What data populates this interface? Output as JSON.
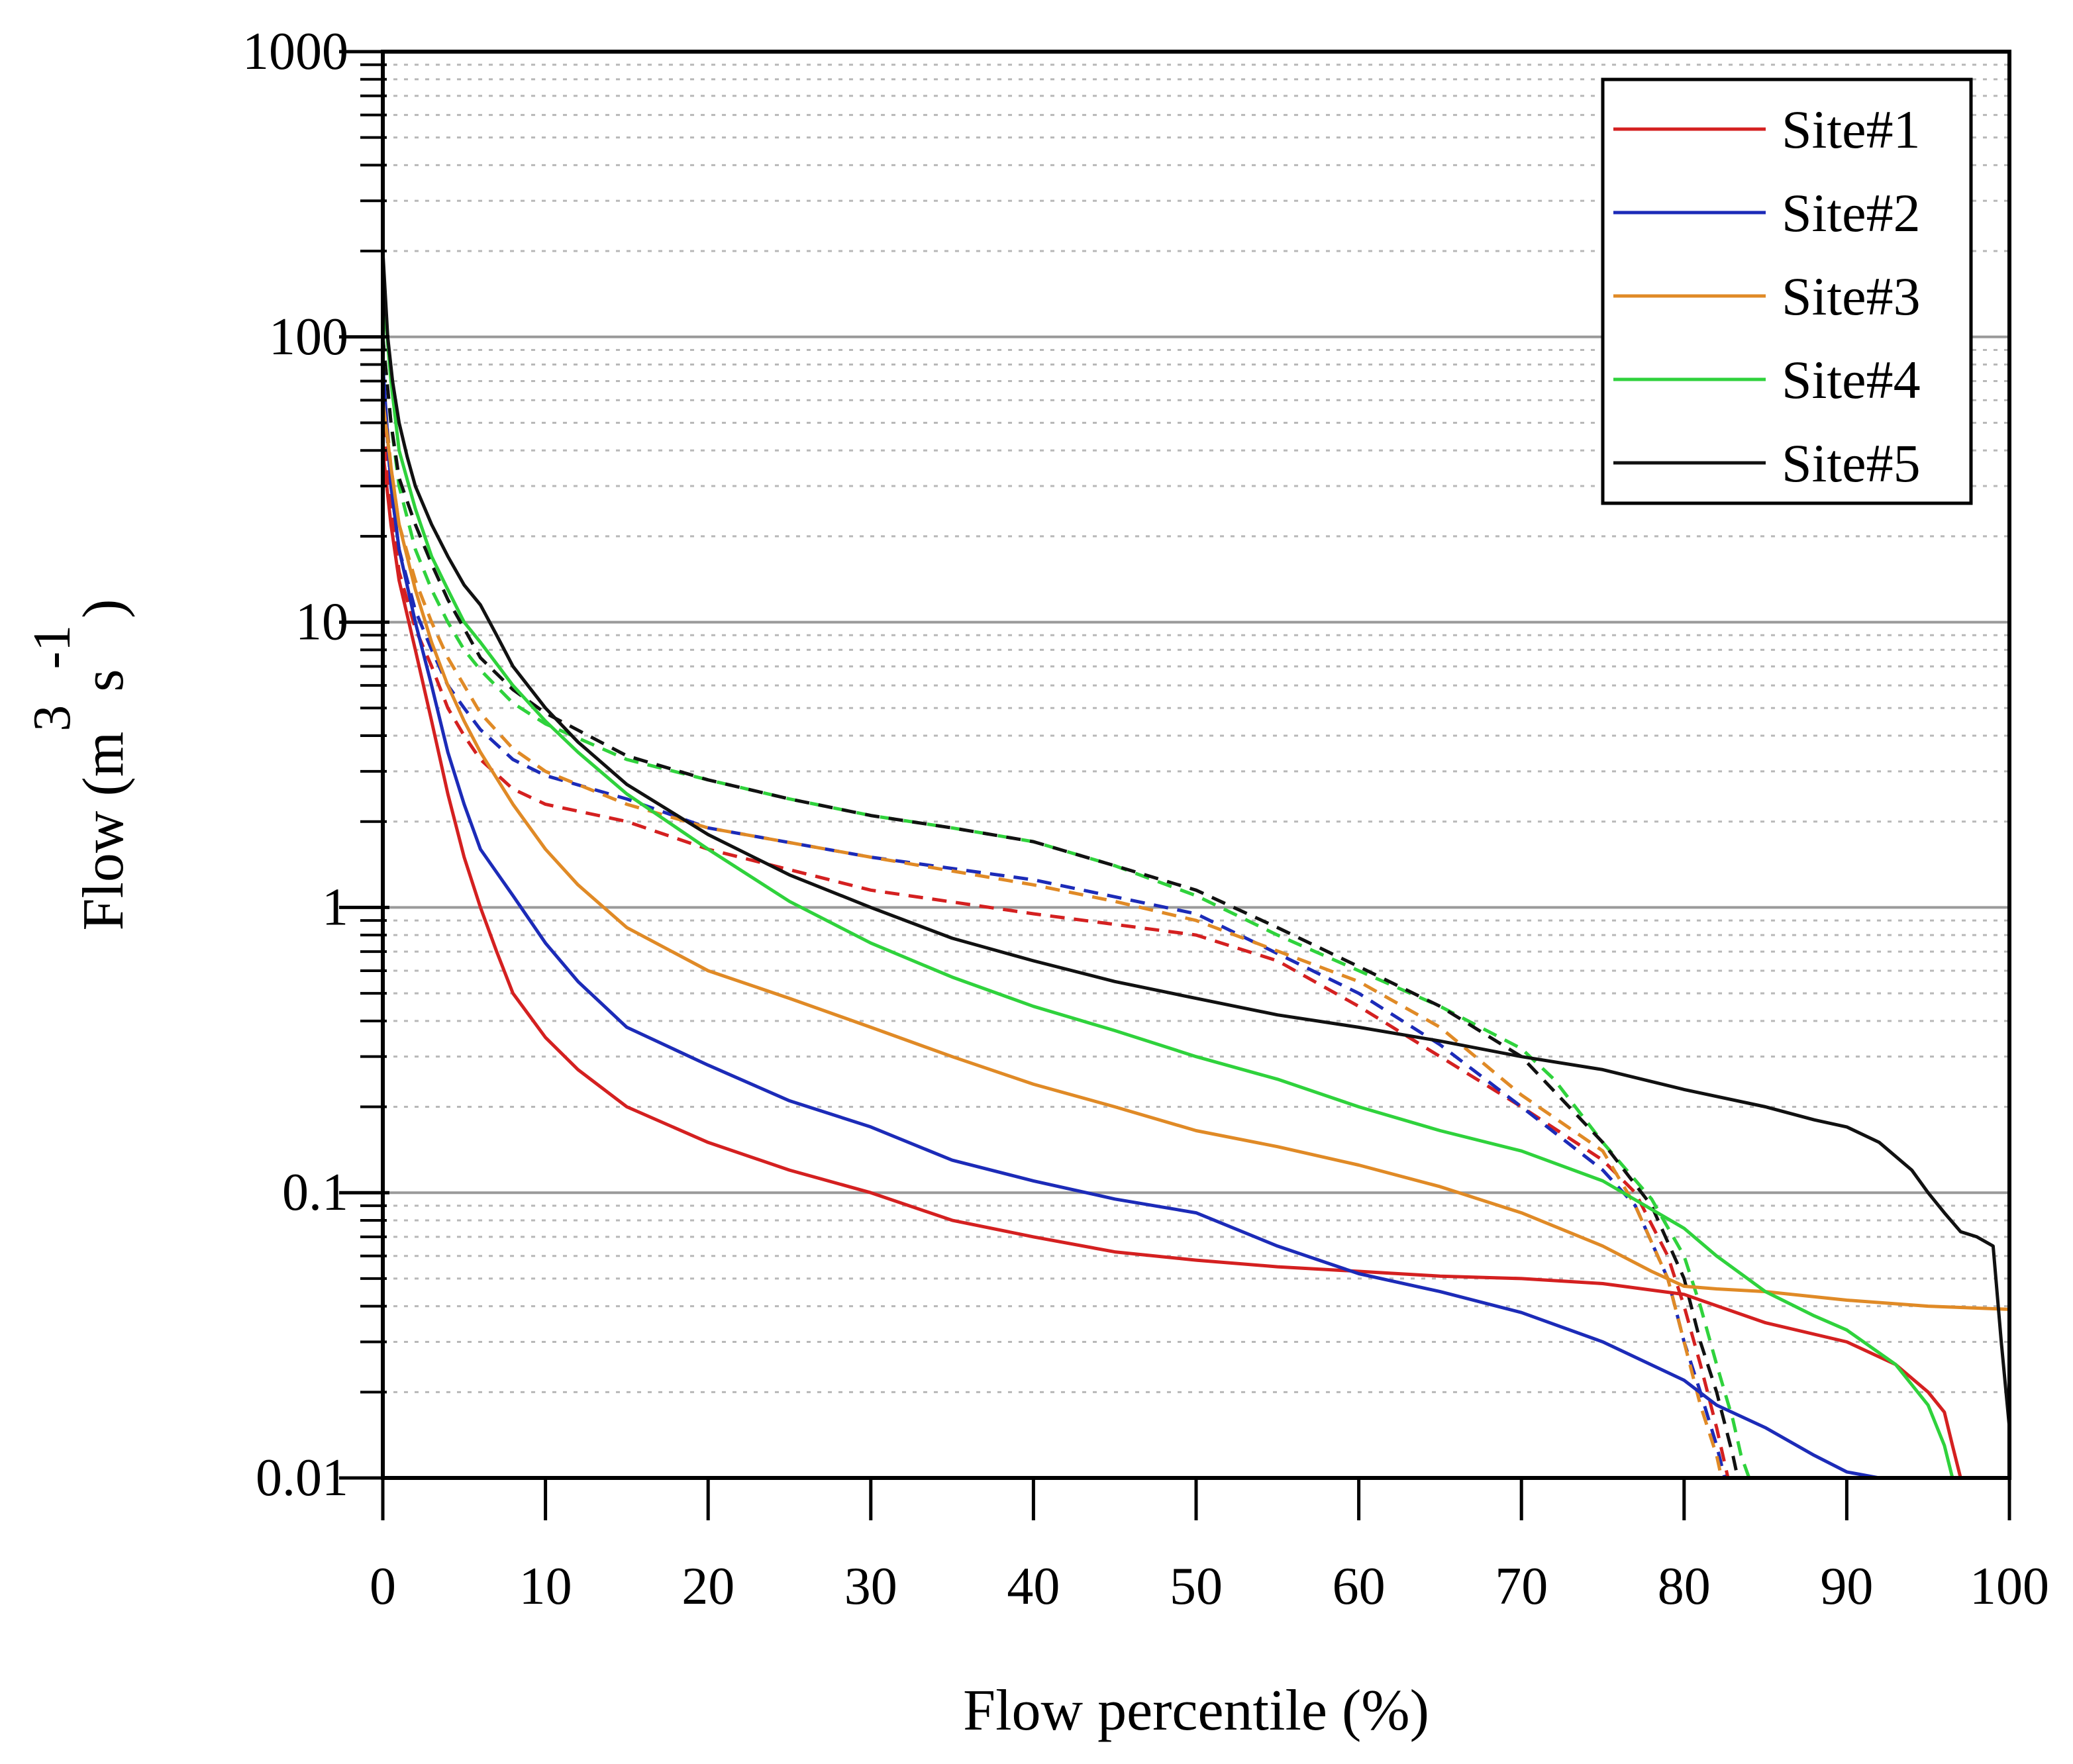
{
  "chart_data": {
    "type": "line",
    "title": "",
    "xlabel": "Flow percentile (%)",
    "ylabel": {
      "main": "Flow (m",
      "s": "s",
      "close": ")",
      "sup_m": "3",
      "sup_s": "-1"
    },
    "xlim": [
      0,
      100
    ],
    "ylim": [
      0.01,
      1000
    ],
    "yscale": "log",
    "x_ticks": [
      "0",
      "10",
      "20",
      "30",
      "40",
      "50",
      "60",
      "70",
      "80",
      "90",
      "100"
    ],
    "y_ticks": [
      "0.01",
      "0.1",
      "1",
      "10",
      "100",
      "1000"
    ],
    "grid": "major solid gray, minor dotted",
    "legend_position": "top-right",
    "series": [
      {
        "name": "Site#1",
        "color": "#d42020",
        "style": "solid",
        "x": [
          0,
          0.5,
          1,
          2,
          3,
          4,
          5,
          6,
          7,
          8,
          10,
          12,
          15,
          20,
          25,
          30,
          35,
          40,
          45,
          50,
          55,
          60,
          65,
          70,
          75,
          80,
          85,
          90,
          93,
          95,
          96,
          96.5,
          97
        ],
        "y": [
          40,
          22,
          14,
          8,
          4.5,
          2.5,
          1.5,
          1.0,
          0.7,
          0.5,
          0.35,
          0.27,
          0.2,
          0.15,
          0.12,
          0.1,
          0.08,
          0.07,
          0.062,
          0.058,
          0.055,
          0.053,
          0.051,
          0.05,
          0.048,
          0.044,
          0.035,
          0.03,
          0.025,
          0.02,
          0.017,
          0.013,
          0.01
        ]
      },
      {
        "name": "Site#1 (dashed)",
        "color": "#d42020",
        "style": "dashed",
        "x": [
          0,
          0.5,
          1,
          2,
          3,
          4,
          5,
          6,
          8,
          10,
          15,
          20,
          30,
          40,
          50,
          55,
          60,
          65,
          70,
          75,
          77,
          79,
          80,
          81,
          82,
          82.7
        ],
        "y": [
          50,
          25,
          15,
          9.5,
          7,
          5,
          4,
          3.3,
          2.6,
          2.3,
          2.0,
          1.6,
          1.15,
          0.95,
          0.8,
          0.65,
          0.45,
          0.3,
          0.2,
          0.13,
          0.1,
          0.06,
          0.04,
          0.025,
          0.015,
          0.01
        ]
      },
      {
        "name": "Site#2",
        "color": "#1c2bb8",
        "style": "solid",
        "x": [
          0,
          0.5,
          1,
          2,
          3,
          4,
          5,
          6,
          8,
          10,
          12,
          15,
          20,
          25,
          30,
          35,
          40,
          45,
          50,
          55,
          60,
          65,
          70,
          75,
          80,
          82,
          85,
          88,
          90,
          92
        ],
        "y": [
          80,
          30,
          18,
          10,
          6,
          3.5,
          2.3,
          1.6,
          1.1,
          0.75,
          0.55,
          0.38,
          0.28,
          0.21,
          0.17,
          0.13,
          0.11,
          0.095,
          0.085,
          0.065,
          0.052,
          0.045,
          0.038,
          0.03,
          0.022,
          0.018,
          0.015,
          0.012,
          0.0105,
          0.01
        ]
      },
      {
        "name": "Site#2 (dashed)",
        "color": "#1c2bb8",
        "style": "dashed",
        "x": [
          0,
          0.5,
          1,
          2,
          3,
          4,
          5,
          6,
          8,
          10,
          15,
          20,
          30,
          40,
          50,
          60,
          65,
          70,
          75,
          77,
          79,
          80,
          81,
          82,
          82.5
        ],
        "y": [
          70,
          30,
          18,
          11,
          8,
          6,
          5,
          4.2,
          3.3,
          2.9,
          2.4,
          1.9,
          1.5,
          1.25,
          0.95,
          0.5,
          0.33,
          0.2,
          0.12,
          0.09,
          0.05,
          0.03,
          0.02,
          0.013,
          0.01
        ]
      },
      {
        "name": "Site#3",
        "color": "#e08a26",
        "style": "solid",
        "x": [
          0,
          0.5,
          1,
          2,
          3,
          4,
          5,
          6,
          8,
          10,
          12,
          15,
          20,
          25,
          30,
          35,
          40,
          45,
          50,
          55,
          60,
          65,
          70,
          75,
          78,
          80,
          82,
          85,
          90,
          95,
          100
        ],
        "y": [
          60,
          35,
          22,
          13,
          8.5,
          6,
          4.5,
          3.5,
          2.3,
          1.6,
          1.2,
          0.85,
          0.6,
          0.48,
          0.38,
          0.3,
          0.24,
          0.2,
          0.165,
          0.145,
          0.125,
          0.105,
          0.085,
          0.065,
          0.053,
          0.047,
          0.046,
          0.045,
          0.042,
          0.04,
          0.039
        ]
      },
      {
        "name": "Site#3 (dashed)",
        "color": "#e08a26",
        "style": "dashed",
        "x": [
          0,
          0.5,
          1,
          2,
          3,
          4,
          5,
          6,
          8,
          10,
          15,
          20,
          30,
          40,
          45,
          50,
          60,
          65,
          70,
          75,
          77,
          79,
          80,
          81,
          82,
          82.3
        ],
        "y": [
          70,
          35,
          22,
          14,
          10,
          7.5,
          6,
          4.8,
          3.6,
          3.0,
          2.3,
          1.9,
          1.5,
          1.2,
          1.05,
          0.9,
          0.55,
          0.38,
          0.22,
          0.14,
          0.09,
          0.05,
          0.03,
          0.018,
          0.012,
          0.01
        ]
      },
      {
        "name": "Site#4",
        "color": "#2fd23c",
        "style": "solid",
        "x": [
          0,
          0.5,
          1,
          2,
          3,
          4,
          5,
          6,
          8,
          10,
          12,
          15,
          20,
          25,
          30,
          35,
          40,
          45,
          50,
          55,
          60,
          65,
          70,
          75,
          80,
          82,
          85,
          88,
          90,
          93,
          95,
          96,
          96.5
        ],
        "y": [
          150,
          70,
          40,
          25,
          17,
          13,
          10,
          8.5,
          6,
          4.5,
          3.5,
          2.5,
          1.6,
          1.05,
          0.75,
          0.57,
          0.45,
          0.37,
          0.3,
          0.25,
          0.2,
          0.165,
          0.14,
          0.11,
          0.075,
          0.06,
          0.045,
          0.037,
          0.033,
          0.025,
          0.018,
          0.013,
          0.01
        ]
      },
      {
        "name": "Site#4 (dashed)",
        "color": "#2fd23c",
        "style": "dashed",
        "x": [
          0,
          0.5,
          1,
          2,
          3,
          4,
          5,
          6,
          8,
          10,
          15,
          20,
          25,
          30,
          35,
          40,
          45,
          50,
          55,
          60,
          65,
          70,
          72,
          75,
          78,
          80,
          81,
          82,
          83,
          83.5,
          84
        ],
        "y": [
          100,
          50,
          30,
          18,
          13,
          10,
          8,
          6.8,
          5.2,
          4.4,
          3.3,
          2.8,
          2.4,
          2.1,
          1.9,
          1.7,
          1.4,
          1.1,
          0.8,
          0.6,
          0.45,
          0.32,
          0.25,
          0.15,
          0.095,
          0.06,
          0.04,
          0.025,
          0.016,
          0.012,
          0.01
        ]
      },
      {
        "name": "Site#5",
        "color": "#111111",
        "style": "solid",
        "x": [
          0,
          0.3,
          0.6,
          1,
          1.5,
          2,
          3,
          4,
          5,
          6,
          7,
          8,
          10,
          12,
          15,
          20,
          25,
          30,
          35,
          40,
          45,
          50,
          55,
          60,
          65,
          70,
          75,
          80,
          85,
          88,
          90,
          92,
          94,
          95,
          96,
          97,
          98,
          99,
          99.5,
          100
        ],
        "y": [
          200,
          100,
          70,
          50,
          38,
          30,
          22,
          17,
          13.5,
          11.5,
          9,
          7,
          5,
          3.8,
          2.7,
          1.8,
          1.3,
          1.0,
          0.78,
          0.65,
          0.55,
          0.48,
          0.42,
          0.38,
          0.34,
          0.3,
          0.27,
          0.23,
          0.2,
          0.18,
          0.17,
          0.15,
          0.12,
          0.1,
          0.085,
          0.073,
          0.07,
          0.065,
          0.03,
          0.015
        ]
      },
      {
        "name": "Site#5 (dashed)",
        "color": "#111111",
        "style": "dashed",
        "x": [
          0,
          0.5,
          1,
          2,
          3,
          4,
          5,
          6,
          8,
          10,
          15,
          20,
          25,
          30,
          35,
          40,
          45,
          50,
          55,
          60,
          65,
          70,
          75,
          78,
          80,
          81,
          82,
          83,
          83.3
        ],
        "y": [
          100,
          50,
          32,
          22,
          16,
          12,
          9.5,
          7.5,
          5.8,
          4.8,
          3.4,
          2.8,
          2.4,
          2.1,
          1.9,
          1.7,
          1.4,
          1.15,
          0.85,
          0.62,
          0.45,
          0.3,
          0.15,
          0.09,
          0.05,
          0.03,
          0.02,
          0.012,
          0.01
        ]
      }
    ],
    "legend": [
      {
        "label": "Site#1",
        "color": "#d42020"
      },
      {
        "label": "Site#2",
        "color": "#1c2bb8"
      },
      {
        "label": "Site#3",
        "color": "#e08a26"
      },
      {
        "label": "Site#4",
        "color": "#2fd23c"
      },
      {
        "label": "Site#5",
        "color": "#111111"
      }
    ]
  }
}
